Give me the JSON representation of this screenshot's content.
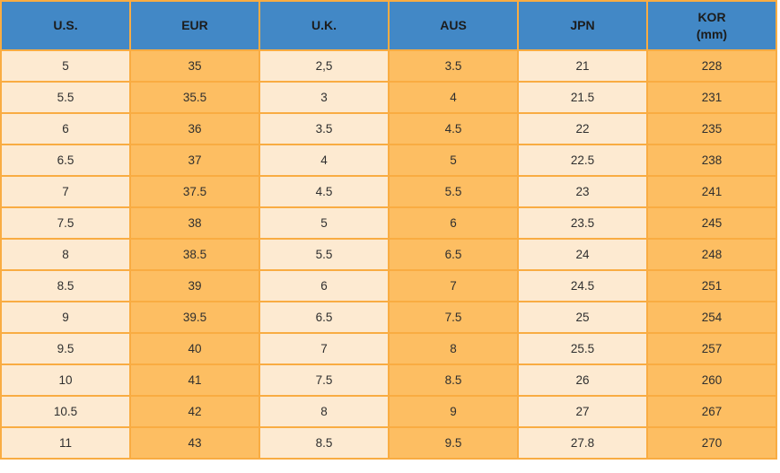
{
  "colors": {
    "header_bg": "#4288C6",
    "grid": "#F9AC42",
    "column_light": "#FDEAD1",
    "column_orange": "#FDBE62",
    "text": "#2F2F2F"
  },
  "chart_data": {
    "type": "table",
    "columns": [
      {
        "label": "U.S.",
        "sublabel": ""
      },
      {
        "label": "EUR",
        "sublabel": ""
      },
      {
        "label": "U.K.",
        "sublabel": ""
      },
      {
        "label": "AUS",
        "sublabel": ""
      },
      {
        "label": "JPN",
        "sublabel": ""
      },
      {
        "label": "KOR",
        "sublabel": "(mm)"
      }
    ],
    "rows": [
      [
        "5",
        "35",
        "2,5",
        "3.5",
        "21",
        "228"
      ],
      [
        "5.5",
        "35.5",
        "3",
        "4",
        "21.5",
        "231"
      ],
      [
        "6",
        "36",
        "3.5",
        "4.5",
        "22",
        "235"
      ],
      [
        "6.5",
        "37",
        "4",
        "5",
        "22.5",
        "238"
      ],
      [
        "7",
        "37.5",
        "4.5",
        "5.5",
        "23",
        "241"
      ],
      [
        "7.5",
        "38",
        "5",
        "6",
        "23.5",
        "245"
      ],
      [
        "8",
        "38.5",
        "5.5",
        "6.5",
        "24",
        "248"
      ],
      [
        "8.5",
        "39",
        "6",
        "7",
        "24.5",
        "251"
      ],
      [
        "9",
        "39.5",
        "6.5",
        "7.5",
        "25",
        "254"
      ],
      [
        "9.5",
        "40",
        "7",
        "8",
        "25.5",
        "257"
      ],
      [
        "10",
        "41",
        "7.5",
        "8.5",
        "26",
        "260"
      ],
      [
        "10.5",
        "42",
        "8",
        "9",
        "27",
        "267"
      ],
      [
        "11",
        "43",
        "8.5",
        "9.5",
        "27.8",
        "270"
      ]
    ]
  }
}
